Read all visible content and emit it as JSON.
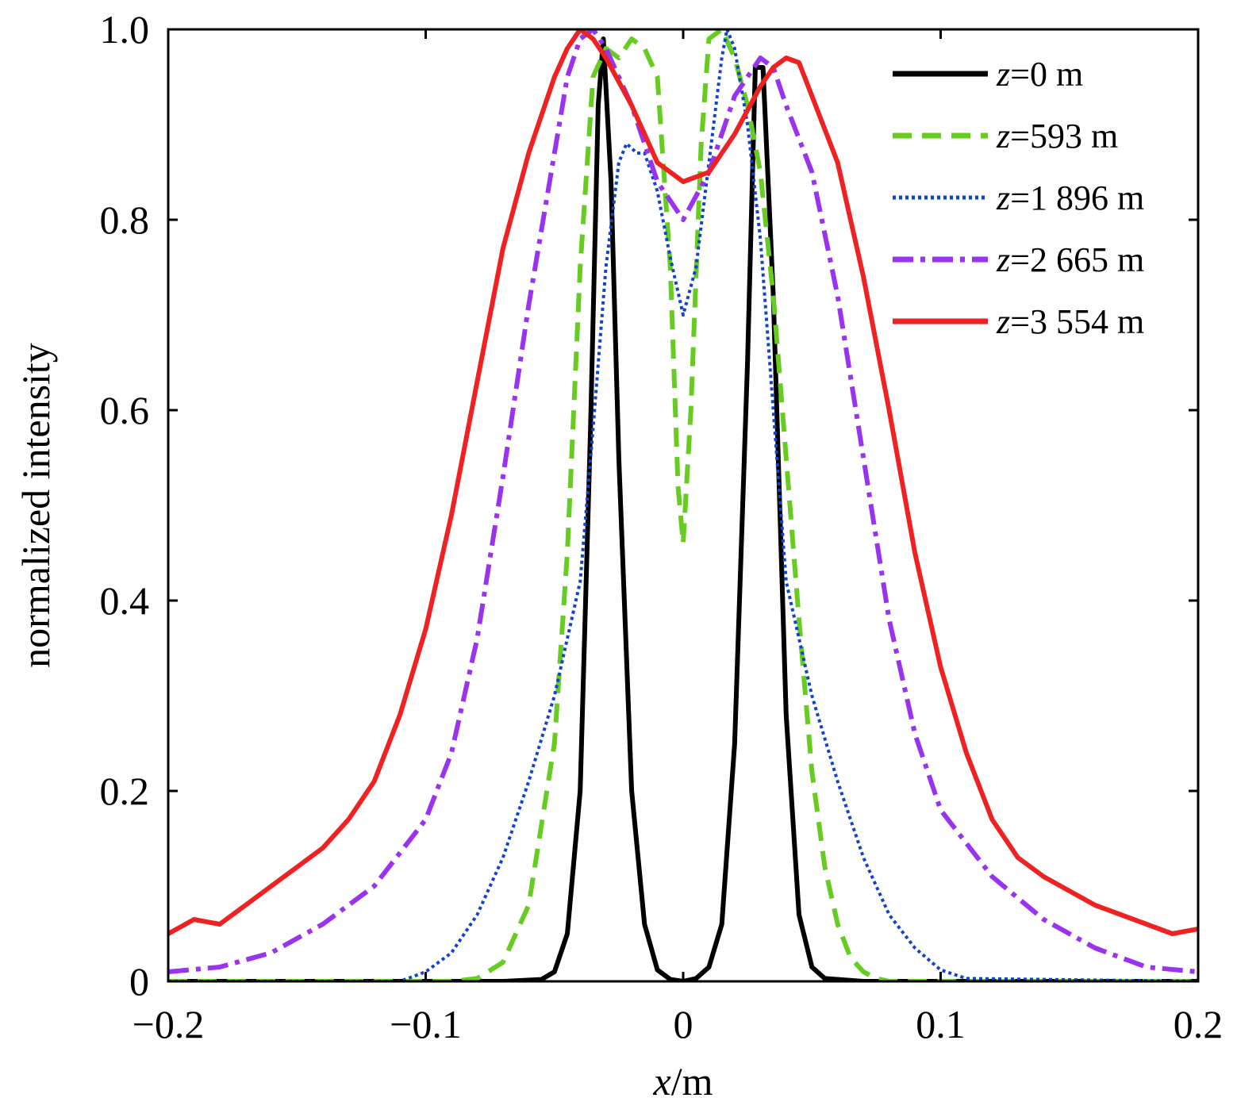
{
  "chart_data": {
    "type": "line",
    "xlabel_var": "x",
    "xlabel_unit": "/m",
    "ylabel": "normalized intensity",
    "xlim": [
      -0.2,
      0.2
    ],
    "ylim": [
      0,
      1.0
    ],
    "x_ticks": [
      -0.2,
      -0.1,
      0,
      0.1,
      0.2
    ],
    "x_tick_labels": [
      "−0.2",
      "−0.1",
      "0",
      "0.1",
      "0.2"
    ],
    "y_ticks": [
      0,
      0.2,
      0.4,
      0.6,
      0.8,
      1.0
    ],
    "y_tick_labels": [
      "0",
      "0.2",
      "0.4",
      "0.6",
      "0.8",
      "1.0"
    ],
    "grid": false,
    "legend_position": "top-right",
    "series": [
      {
        "name": "z=0 m",
        "label_var": "z",
        "label_rest": "=0 m",
        "color": "#000000",
        "dash": "solid",
        "x": [
          -0.2,
          -0.07,
          -0.055,
          -0.05,
          -0.045,
          -0.04,
          -0.036,
          -0.033,
          -0.031,
          -0.028,
          -0.025,
          -0.02,
          -0.015,
          -0.01,
          -0.005,
          0,
          0.005,
          0.01,
          0.015,
          0.02,
          0.025,
          0.028,
          0.031,
          0.035,
          0.04,
          0.045,
          0.05,
          0.055,
          0.07,
          0.2
        ],
        "y": [
          0,
          0,
          0.002,
          0.01,
          0.05,
          0.2,
          0.58,
          0.92,
          0.99,
          0.84,
          0.55,
          0.2,
          0.06,
          0.012,
          0.002,
          0,
          0.003,
          0.015,
          0.06,
          0.25,
          0.65,
          0.96,
          0.96,
          0.72,
          0.28,
          0.07,
          0.015,
          0.003,
          0,
          0
        ]
      },
      {
        "name": "z=593 m",
        "label_var": "z",
        "label_rest": "=593 m",
        "color": "#66cc22",
        "dash": "dashed",
        "x": [
          -0.2,
          -0.09,
          -0.08,
          -0.07,
          -0.06,
          -0.05,
          -0.045,
          -0.04,
          -0.035,
          -0.03,
          -0.025,
          -0.02,
          -0.015,
          -0.01,
          -0.005,
          -0.002,
          0,
          0.003,
          0.007,
          0.01,
          0.015,
          0.02,
          0.025,
          0.03,
          0.035,
          0.04,
          0.045,
          0.05,
          0.055,
          0.06,
          0.065,
          0.07,
          0.075,
          0.08,
          0.2
        ],
        "y": [
          0,
          0,
          0.003,
          0.02,
          0.08,
          0.25,
          0.45,
          0.75,
          0.95,
          0.98,
          0.97,
          0.99,
          0.98,
          0.95,
          0.75,
          0.52,
          0.46,
          0.6,
          0.88,
          0.99,
          1.0,
          0.97,
          0.92,
          0.85,
          0.72,
          0.55,
          0.38,
          0.22,
          0.12,
          0.06,
          0.025,
          0.01,
          0.003,
          0,
          0
        ]
      },
      {
        "name": "z=1 896 m",
        "label_var": "z",
        "label_rest": "=1 896 m",
        "color": "#1144cc",
        "dash": "dotted",
        "x": [
          -0.2,
          -0.11,
          -0.1,
          -0.09,
          -0.08,
          -0.07,
          -0.06,
          -0.05,
          -0.04,
          -0.035,
          -0.03,
          -0.025,
          -0.022,
          -0.018,
          -0.015,
          -0.01,
          -0.005,
          0,
          0.005,
          0.01,
          0.015,
          0.017,
          0.02,
          0.025,
          0.03,
          0.035,
          0.04,
          0.05,
          0.06,
          0.07,
          0.08,
          0.09,
          0.1,
          0.11,
          0.2
        ],
        "y": [
          0,
          0,
          0.01,
          0.03,
          0.07,
          0.13,
          0.21,
          0.3,
          0.42,
          0.58,
          0.75,
          0.86,
          0.88,
          0.87,
          0.87,
          0.83,
          0.76,
          0.7,
          0.75,
          0.86,
          0.97,
          1.0,
          0.98,
          0.9,
          0.78,
          0.6,
          0.42,
          0.3,
          0.21,
          0.13,
          0.07,
          0.035,
          0.012,
          0.003,
          0
        ]
      },
      {
        "name": "z=2 665 m",
        "label_var": "z",
        "label_rest": "=2 665 m",
        "color": "#9933ee",
        "dash": "dashdot",
        "x": [
          -0.2,
          -0.18,
          -0.16,
          -0.14,
          -0.12,
          -0.1,
          -0.09,
          -0.08,
          -0.07,
          -0.06,
          -0.05,
          -0.045,
          -0.04,
          -0.035,
          -0.03,
          -0.02,
          -0.01,
          0,
          0.01,
          0.02,
          0.03,
          0.035,
          0.04,
          0.05,
          0.06,
          0.07,
          0.08,
          0.09,
          0.1,
          0.12,
          0.14,
          0.16,
          0.18,
          0.2
        ],
        "y": [
          0.01,
          0.015,
          0.03,
          0.06,
          0.1,
          0.17,
          0.24,
          0.36,
          0.53,
          0.71,
          0.87,
          0.95,
          0.99,
          1.0,
          0.98,
          0.92,
          0.84,
          0.8,
          0.85,
          0.93,
          0.97,
          0.96,
          0.92,
          0.85,
          0.72,
          0.55,
          0.38,
          0.26,
          0.18,
          0.11,
          0.065,
          0.035,
          0.015,
          0.01
        ]
      },
      {
        "name": "z=3 554 m",
        "label_var": "z",
        "label_rest": "=3 554 m",
        "color": "#ee2222",
        "dash": "solid",
        "x": [
          -0.2,
          -0.19,
          -0.18,
          -0.17,
          -0.16,
          -0.15,
          -0.14,
          -0.13,
          -0.12,
          -0.11,
          -0.1,
          -0.09,
          -0.08,
          -0.07,
          -0.06,
          -0.05,
          -0.045,
          -0.04,
          -0.035,
          -0.03,
          -0.02,
          -0.01,
          0,
          0.01,
          0.02,
          0.03,
          0.035,
          0.04,
          0.045,
          0.05,
          0.06,
          0.07,
          0.08,
          0.09,
          0.1,
          0.11,
          0.12,
          0.13,
          0.14,
          0.15,
          0.16,
          0.17,
          0.18,
          0.19,
          0.2
        ],
        "y": [
          0.05,
          0.065,
          0.06,
          0.08,
          0.1,
          0.12,
          0.14,
          0.17,
          0.21,
          0.28,
          0.37,
          0.49,
          0.63,
          0.77,
          0.87,
          0.95,
          0.98,
          1.0,
          0.99,
          0.97,
          0.92,
          0.86,
          0.84,
          0.85,
          0.89,
          0.94,
          0.96,
          0.97,
          0.965,
          0.93,
          0.86,
          0.74,
          0.6,
          0.45,
          0.33,
          0.24,
          0.17,
          0.13,
          0.11,
          0.095,
          0.08,
          0.07,
          0.06,
          0.05,
          0.055
        ]
      }
    ]
  }
}
